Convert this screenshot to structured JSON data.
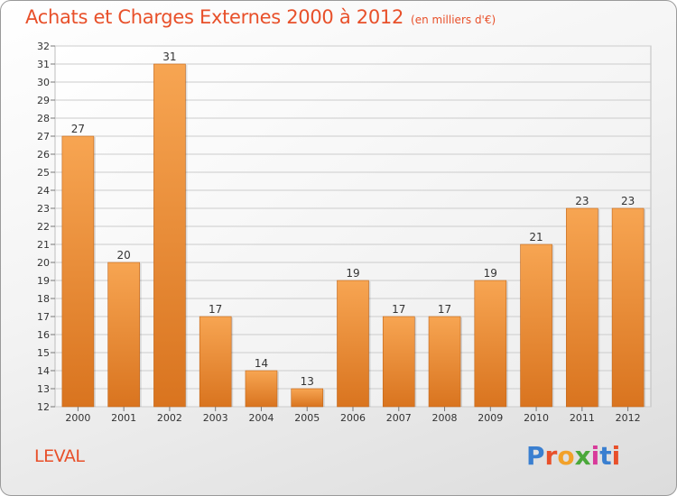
{
  "header": {
    "title": "Achats et Charges Externes 2000 à 2012",
    "unit": "(en milliers d'€)"
  },
  "commune": "LEVAL",
  "logo": {
    "letters": [
      "P",
      "r",
      "o",
      "x",
      "i",
      "t",
      "i"
    ],
    "colors": [
      "#3a7fd0",
      "#e8502a",
      "#f2a12a",
      "#4aa83a",
      "#d83a9a",
      "#3a7fd0",
      "#e8502a"
    ]
  },
  "colors": {
    "title": "#e8502a",
    "bar_light": "#f7a552",
    "bar_dark": "#d9741f",
    "grid": "#cccccc"
  },
  "chart_data": {
    "type": "bar",
    "categories": [
      "2000",
      "2001",
      "2002",
      "2003",
      "2004",
      "2005",
      "2006",
      "2007",
      "2008",
      "2009",
      "2010",
      "2011",
      "2012"
    ],
    "values": [
      27,
      20,
      31,
      17,
      14,
      13,
      19,
      17,
      17,
      19,
      21,
      23,
      23
    ],
    "ylim": [
      12,
      32
    ],
    "yticks": [
      12,
      13,
      14,
      15,
      16,
      17,
      18,
      19,
      20,
      21,
      22,
      23,
      24,
      25,
      26,
      27,
      28,
      29,
      30,
      31,
      32
    ],
    "grid": true,
    "data_labels": true
  }
}
